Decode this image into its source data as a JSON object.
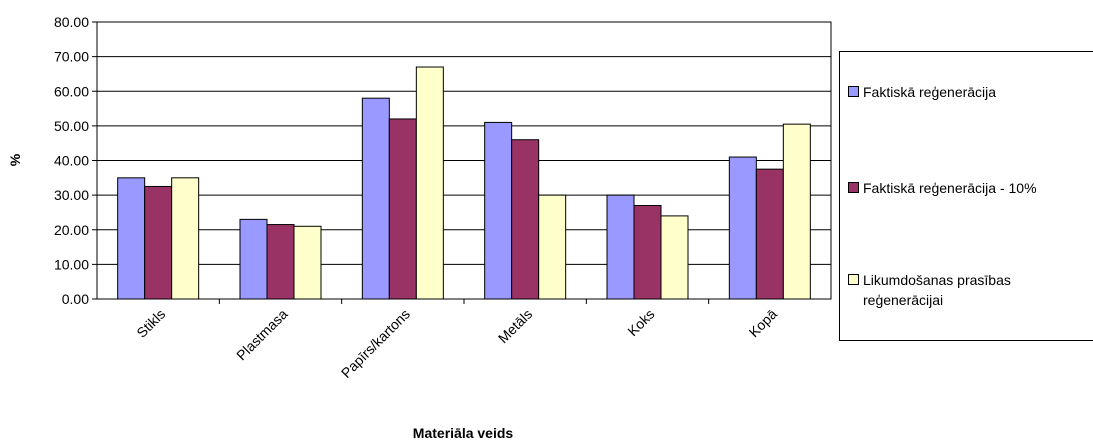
{
  "chart_data": {
    "type": "bar",
    "categories": [
      "Stikls",
      "Plastmasa",
      "Papīrs/kartons",
      "Metāls",
      "Koks",
      "Kopā"
    ],
    "series": [
      {
        "name": "Faktiskā reģenerācija",
        "color": "#9999ff",
        "values": [
          35.0,
          23.0,
          58.0,
          51.0,
          30.0,
          41.0
        ]
      },
      {
        "name": "Faktiskā reģenerācija - 10%",
        "color": "#993366",
        "values": [
          32.5,
          21.5,
          52.0,
          46.0,
          27.0,
          37.5
        ]
      },
      {
        "name": "Likumdošanas prasības reģenerācijai",
        "color": "#ffffcc",
        "values": [
          35.0,
          21.0,
          67.0,
          30.0,
          24.0,
          50.5
        ]
      }
    ],
    "yticks": [
      "0.00",
      "10.00",
      "20.00",
      "30.00",
      "40.00",
      "50.00",
      "60.00",
      "70.00",
      "80.00"
    ],
    "ylim": [
      0,
      80
    ],
    "xlabel": "Materiāla veids",
    "ylabel": "%",
    "grid": true,
    "legend_position": "right"
  }
}
